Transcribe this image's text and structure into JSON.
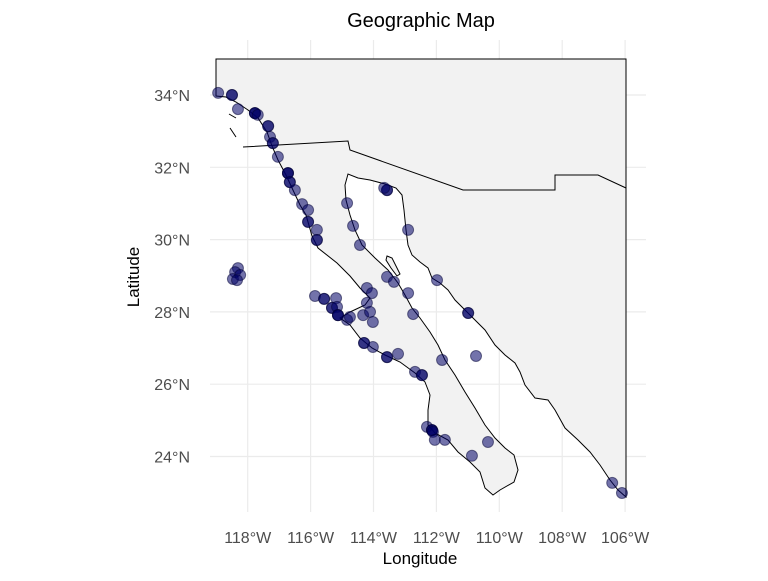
{
  "chart_data": {
    "type": "scatter",
    "title": "Geographic Map",
    "xlabel": "Longitude",
    "ylabel": "Latitude",
    "xlim": [
      -119.1,
      -105.9
    ],
    "ylim": [
      22.7,
      35.3
    ],
    "grid": true,
    "legend": "none",
    "x_ticks": [
      {
        "value": -118,
        "label": "118°W"
      },
      {
        "value": -116,
        "label": "116°W"
      },
      {
        "value": -114,
        "label": "114°W"
      },
      {
        "value": -112,
        "label": "112°W"
      },
      {
        "value": -110,
        "label": "110°W"
      },
      {
        "value": -108,
        "label": "108°W"
      },
      {
        "value": -106,
        "label": "106°W"
      }
    ],
    "y_ticks": [
      {
        "value": 24,
        "label": "24°N"
      },
      {
        "value": 26,
        "label": "26°N"
      },
      {
        "value": 28,
        "label": "28°N"
      },
      {
        "value": 30,
        "label": "30°N"
      },
      {
        "value": 32,
        "label": "32°N"
      },
      {
        "value": 34,
        "label": "34°N"
      }
    ],
    "colors": {
      "point_fill": "#000066",
      "point_stroke": "#000033",
      "land": "#f2f2f2",
      "border": "#000000",
      "grid": "#ebebeb"
    },
    "point_opacity": 0.55,
    "points": [
      [
        -118.94,
        34.06
      ],
      [
        -118.5,
        34.0
      ],
      [
        -118.5,
        34.0
      ],
      [
        -118.31,
        33.61
      ],
      [
        -117.77,
        33.5
      ],
      [
        -117.77,
        33.5
      ],
      [
        -117.77,
        33.5
      ],
      [
        -117.68,
        33.45
      ],
      [
        -117.35,
        33.14
      ],
      [
        -117.35,
        33.14
      ],
      [
        -117.29,
        32.84
      ],
      [
        -117.2,
        32.67
      ],
      [
        -117.2,
        32.67
      ],
      [
        -117.04,
        32.29
      ],
      [
        -116.72,
        31.84
      ],
      [
        -116.72,
        31.84
      ],
      [
        -116.72,
        31.84
      ],
      [
        -116.66,
        31.59
      ],
      [
        -116.66,
        31.59
      ],
      [
        -116.5,
        31.37
      ],
      [
        -116.27,
        30.98
      ],
      [
        -116.08,
        30.82
      ],
      [
        -116.08,
        30.49
      ],
      [
        -116.08,
        30.49
      ],
      [
        -115.8,
        30.27
      ],
      [
        -115.8,
        29.99
      ],
      [
        -115.8,
        29.99
      ],
      [
        -114.84,
        31.01
      ],
      [
        -114.65,
        30.38
      ],
      [
        -114.43,
        29.85
      ],
      [
        -113.57,
        31.37
      ],
      [
        -113.57,
        31.37
      ],
      [
        -113.66,
        31.43
      ],
      [
        -112.9,
        30.27
      ],
      [
        -113.57,
        28.97
      ],
      [
        -113.35,
        28.83
      ],
      [
        -112.9,
        28.52
      ],
      [
        -112.74,
        27.94
      ],
      [
        -111.98,
        28.88
      ],
      [
        -111.82,
        26.67
      ],
      [
        -110.99,
        27.97
      ],
      [
        -110.99,
        27.97
      ],
      [
        -110.74,
        26.78
      ],
      [
        -115.86,
        28.44
      ],
      [
        -115.57,
        28.36
      ],
      [
        -115.57,
        28.36
      ],
      [
        -115.19,
        28.38
      ],
      [
        -115.32,
        28.11
      ],
      [
        -115.32,
        28.11
      ],
      [
        -115.16,
        28.14
      ],
      [
        -115.13,
        27.91
      ],
      [
        -115.13,
        27.91
      ],
      [
        -115.13,
        27.91
      ],
      [
        -114.84,
        27.78
      ],
      [
        -114.75,
        27.86
      ],
      [
        -114.21,
        28.66
      ],
      [
        -114.05,
        28.52
      ],
      [
        -114.21,
        28.25
      ],
      [
        -114.33,
        27.91
      ],
      [
        -114.11,
        28.0
      ],
      [
        -114.02,
        27.72
      ],
      [
        -114.3,
        27.14
      ],
      [
        -114.3,
        27.14
      ],
      [
        -114.02,
        27.03
      ],
      [
        -113.57,
        26.75
      ],
      [
        -113.57,
        26.75
      ],
      [
        -113.22,
        26.84
      ],
      [
        -112.68,
        26.34
      ],
      [
        -112.46,
        26.25
      ],
      [
        -112.46,
        26.25
      ],
      [
        -112.3,
        24.82
      ],
      [
        -112.14,
        24.73
      ],
      [
        -112.14,
        24.73
      ],
      [
        -112.14,
        24.73
      ],
      [
        -112.11,
        24.68
      ],
      [
        -112.05,
        24.46
      ],
      [
        -111.73,
        24.46
      ],
      [
        -110.87,
        24.02
      ],
      [
        -110.36,
        24.4
      ],
      [
        -106.41,
        23.27
      ],
      [
        -106.1,
        22.99
      ],
      [
        -118.31,
        29.21
      ],
      [
        -118.4,
        29.1
      ],
      [
        -118.47,
        28.91
      ],
      [
        -118.24,
        29.02
      ],
      [
        -118.34,
        28.88
      ]
    ]
  }
}
